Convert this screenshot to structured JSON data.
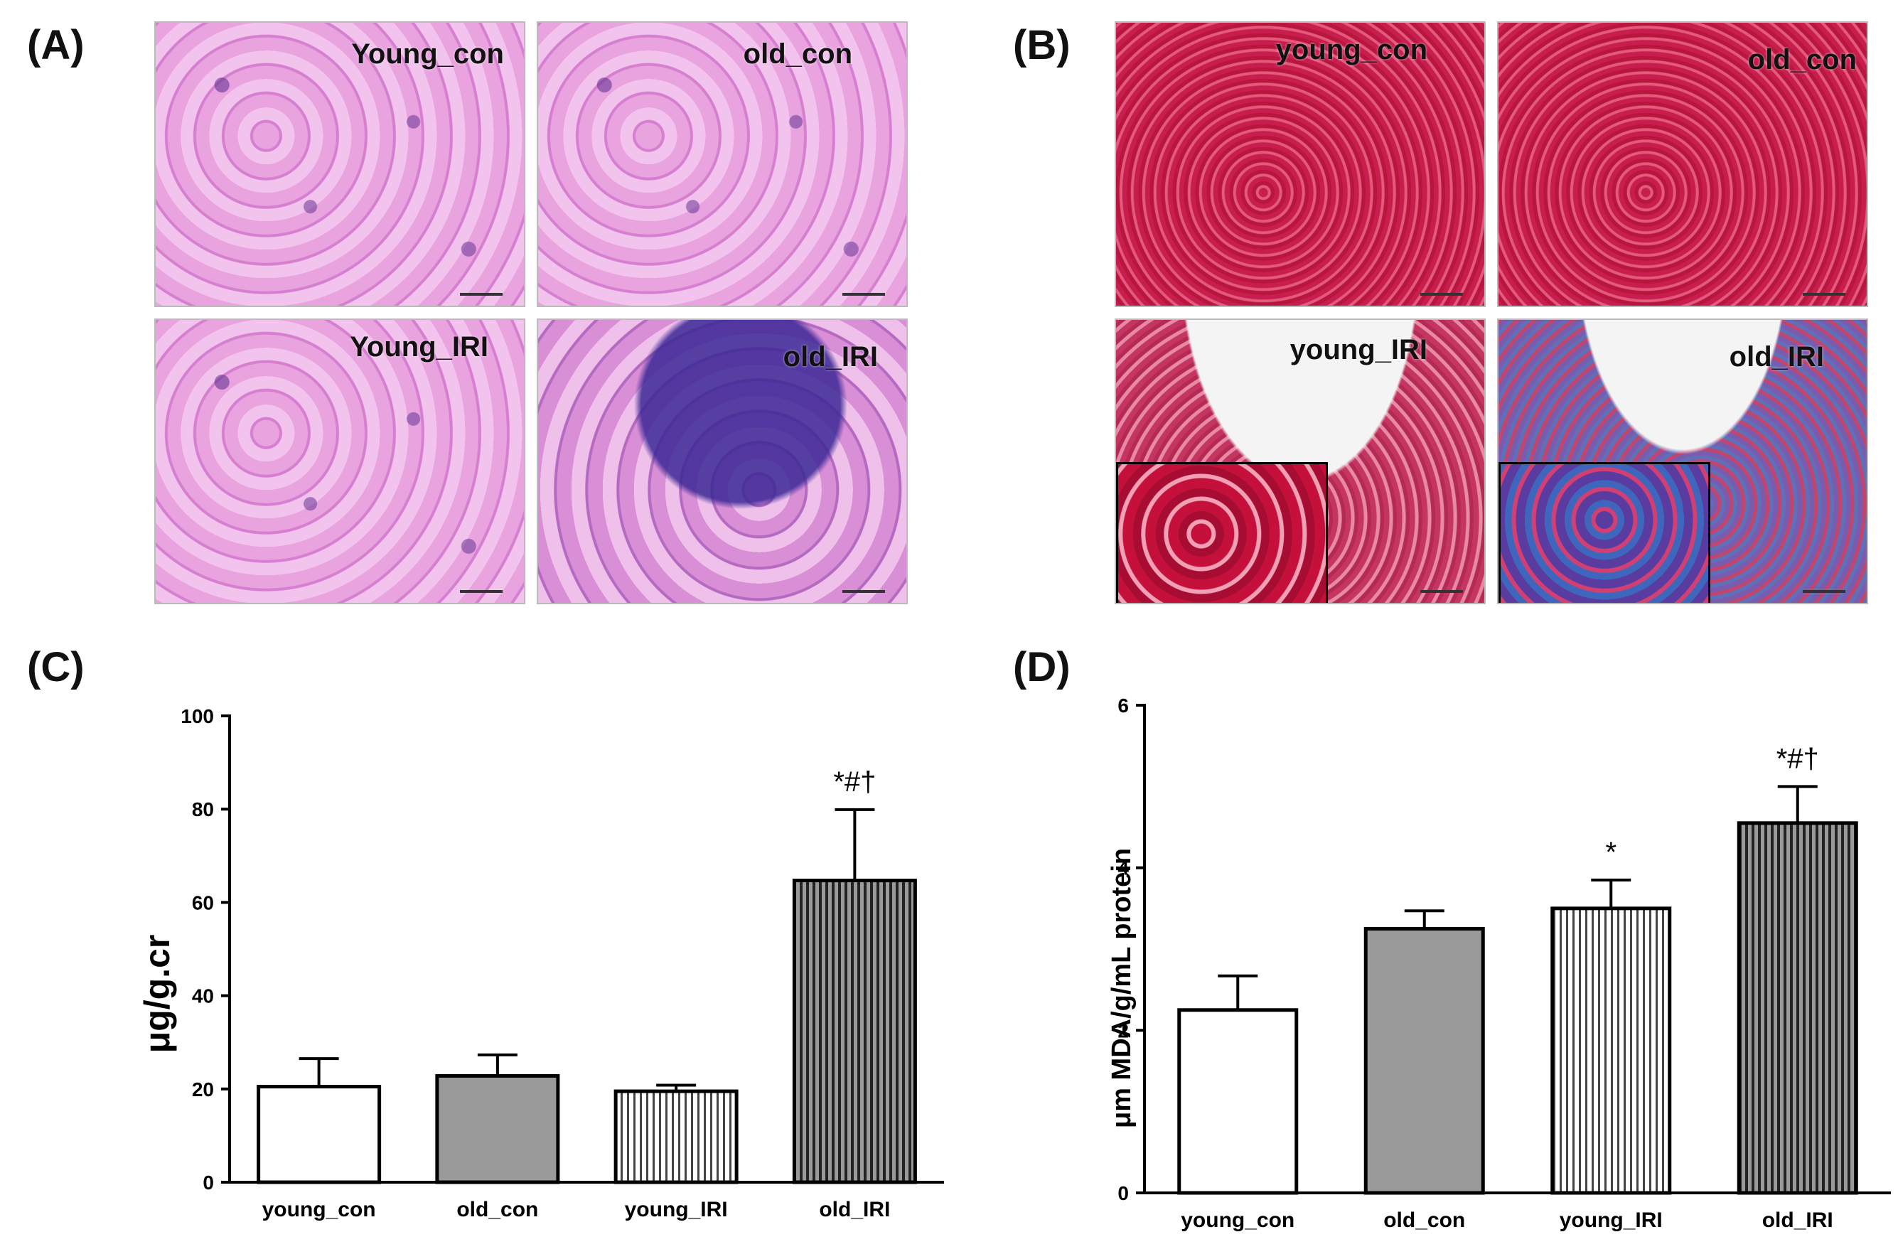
{
  "panels": {
    "a": {
      "label": "(A)",
      "images": [
        {
          "tag": "Young_con"
        },
        {
          "tag": "old_con"
        },
        {
          "tag": "Young_IRI"
        },
        {
          "tag": "old_IRI"
        }
      ]
    },
    "b": {
      "label": "(B)",
      "images": [
        {
          "tag": "young_con"
        },
        {
          "tag": "old_con"
        },
        {
          "tag": "young_IRI"
        },
        {
          "tag": "old_IRI"
        }
      ]
    },
    "c": {
      "label": "(C)"
    },
    "d": {
      "label": "(D)"
    }
  },
  "chart_data": [
    {
      "type": "bar",
      "categories": [
        "young_con",
        "old_con",
        "young_IRI",
        "old_IRI"
      ],
      "values": [
        20.5,
        22.8,
        19.5,
        64.7
      ],
      "errors": [
        6.0,
        4.5,
        1.3,
        15.2
      ],
      "annotations": [
        "",
        "",
        "",
        "*#†"
      ],
      "fills": [
        "white",
        "gray",
        "vertical-stripes-light",
        "vertical-stripes-dark"
      ],
      "title": "",
      "xlabel": "",
      "ylabel": "μg/g.cr",
      "ylim": [
        0,
        100
      ],
      "yticks": [
        0,
        20,
        40,
        60,
        80,
        100
      ],
      "grid": false
    },
    {
      "type": "bar",
      "categories": [
        "young_con",
        "old_con",
        "young_IRI",
        "old_IRI"
      ],
      "values": [
        2.25,
        3.25,
        3.5,
        4.55
      ],
      "errors": [
        0.42,
        0.22,
        0.35,
        0.45
      ],
      "annotations": [
        "",
        "",
        "*",
        "*#†"
      ],
      "fills": [
        "white",
        "gray",
        "vertical-stripes-light",
        "vertical-stripes-dark"
      ],
      "title": "",
      "xlabel": "",
      "ylabel": "μm MDA/g/mL protein",
      "ylim": [
        0,
        6
      ],
      "yticks": [
        0,
        2,
        4,
        6
      ],
      "grid": false
    }
  ]
}
